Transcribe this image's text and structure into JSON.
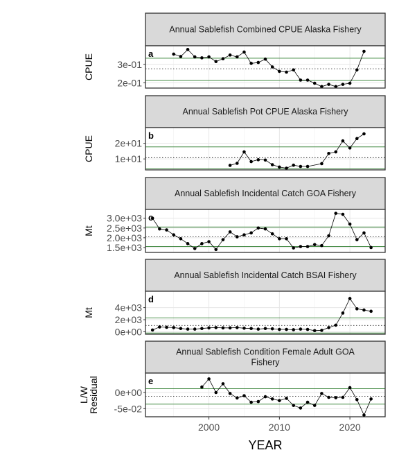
{
  "chart_data": {
    "type": "line",
    "xlabel": "YEAR",
    "x_ticks": [
      2000,
      2010,
      2020
    ],
    "xlim": [
      1991,
      2025
    ],
    "panels": [
      {
        "letter": "a",
        "title_lines": [
          "Annual Sablefish Combined CPUE Alaska Fishery"
        ],
        "ylabel_lines": [
          "CPUE"
        ],
        "ylim": [
          0.172,
          0.4
        ],
        "yticks": [
          {
            "value": 0.3,
            "label": "3e-01"
          },
          {
            "value": 0.2,
            "label": "2e-01"
          }
        ],
        "mean": 0.276,
        "upper": 0.333,
        "lower": 0.213,
        "x": [
          1995,
          1996,
          1997,
          1998,
          1999,
          2000,
          2001,
          2002,
          2003,
          2004,
          2005,
          2006,
          2007,
          2008,
          2009,
          2010,
          2011,
          2012,
          2013,
          2014,
          2015,
          2016,
          2017,
          2018,
          2019,
          2020,
          2021,
          2022
        ],
        "values": [
          0.355,
          0.342,
          0.38,
          0.34,
          0.335,
          0.34,
          0.315,
          0.33,
          0.35,
          0.34,
          0.366,
          0.305,
          0.31,
          0.328,
          0.286,
          0.262,
          0.258,
          0.27,
          0.215,
          0.215,
          0.198,
          0.18,
          0.192,
          0.18,
          0.192,
          0.198,
          0.27,
          0.37
        ]
      },
      {
        "letter": "b",
        "title_lines": [
          "Annual Sablefish Pot CPUE Alaska Fishery"
        ],
        "ylabel_lines": [
          "CPUE"
        ],
        "ylim": [
          3.0,
          30.0
        ],
        "yticks": [
          {
            "value": 20,
            "label": "2e+01"
          },
          {
            "value": 10,
            "label": "1e+01"
          }
        ],
        "mean": 10.8,
        "upper": 17.7,
        "lower": 3.7,
        "x": [
          2003,
          2004,
          2005,
          2006,
          2007,
          2008,
          2009,
          2010,
          2011,
          2012,
          2013,
          2014,
          2016,
          2017,
          2018,
          2019,
          2020,
          2021,
          2022
        ],
        "values": [
          5.9,
          7.2,
          14.5,
          8.3,
          9.5,
          9.3,
          6.3,
          4.8,
          4.1,
          6.0,
          5.2,
          5.2,
          7.0,
          13.5,
          14.5,
          21.5,
          17.0,
          23.0,
          26.0
        ]
      },
      {
        "letter": "c",
        "title_lines": [
          "Annual Sablefish Incidental Catch GOA Fishery"
        ],
        "ylabel_lines": [
          "Mt"
        ],
        "ylim": [
          1250,
          3450
        ],
        "yticks": [
          {
            "value": 3000,
            "label": "3.0e+03"
          },
          {
            "value": 2500,
            "label": "2.5e+03"
          },
          {
            "value": 2000,
            "label": "2.0e+03"
          },
          {
            "value": 1500,
            "label": "1.5e+03"
          }
        ],
        "mean": 2050,
        "upper": 2550,
        "lower": 1550,
        "x": [
          1992,
          1993,
          1994,
          1995,
          1996,
          1997,
          1998,
          1999,
          2000,
          2001,
          2002,
          2003,
          2004,
          2005,
          2006,
          2007,
          2008,
          2009,
          2010,
          2011,
          2012,
          2013,
          2014,
          2015,
          2016,
          2017,
          2018,
          2019,
          2020,
          2021,
          2022,
          2023
        ],
        "values": [
          3000,
          2450,
          2400,
          2150,
          1950,
          1700,
          1450,
          1700,
          1800,
          1400,
          1900,
          2300,
          2050,
          2150,
          2250,
          2500,
          2450,
          2200,
          1950,
          1950,
          1480,
          1550,
          1550,
          1650,
          1600,
          2100,
          3250,
          3200,
          2700,
          1900,
          2250,
          1500
        ]
      },
      {
        "letter": "d",
        "title_lines": [
          "Annual Sablefish Incidental Catch BSAI Fishery"
        ],
        "ylabel_lines": [
          "Mt"
        ],
        "ylim": [
          -400,
          6700
        ],
        "yticks": [
          {
            "value": 4000,
            "label": "4e+03"
          },
          {
            "value": 2000,
            "label": "2e+03"
          },
          {
            "value": 0,
            "label": "0e+00"
          }
        ],
        "mean": 1050,
        "upper": 2300,
        "lower": -200,
        "x": [
          1992,
          1993,
          1994,
          1995,
          1996,
          1997,
          1998,
          1999,
          2000,
          2001,
          2002,
          2003,
          2004,
          2005,
          2006,
          2007,
          2008,
          2009,
          2010,
          2011,
          2012,
          2013,
          2014,
          2015,
          2016,
          2017,
          2018,
          2019,
          2020,
          2021,
          2022,
          2023
        ],
        "values": [
          300,
          800,
          750,
          700,
          550,
          450,
          450,
          550,
          650,
          700,
          650,
          650,
          700,
          600,
          550,
          450,
          550,
          500,
          400,
          400,
          350,
          450,
          400,
          200,
          250,
          700,
          1100,
          3100,
          5500,
          3800,
          3600,
          3400
        ]
      },
      {
        "letter": "e",
        "title_lines": [
          "Annual Sablefish Condition Female Adult GOA",
          "Fishery"
        ],
        "ylabel_lines": [
          "L/W",
          "Residual"
        ],
        "ylim": [
          -0.075,
          0.06
        ],
        "yticks": [
          {
            "value": 0,
            "label": "0e+00"
          },
          {
            "value": -0.05,
            "label": "-5e-02"
          }
        ],
        "mean": -0.012,
        "upper": 0.012,
        "lower": -0.036,
        "x": [
          1999,
          2000,
          2001,
          2002,
          2003,
          2004,
          2005,
          2006,
          2007,
          2008,
          2009,
          2010,
          2011,
          2012,
          2013,
          2014,
          2015,
          2016,
          2017,
          2018,
          2019,
          2020,
          2021,
          2022,
          2023
        ],
        "values": [
          0.017,
          0.042,
          0.0,
          0.027,
          -0.003,
          -0.017,
          -0.01,
          -0.03,
          -0.028,
          -0.013,
          -0.02,
          -0.025,
          -0.018,
          -0.04,
          -0.048,
          -0.03,
          -0.04,
          -0.003,
          -0.015,
          -0.016,
          -0.015,
          0.015,
          -0.022,
          -0.07,
          -0.02
        ]
      }
    ]
  }
}
